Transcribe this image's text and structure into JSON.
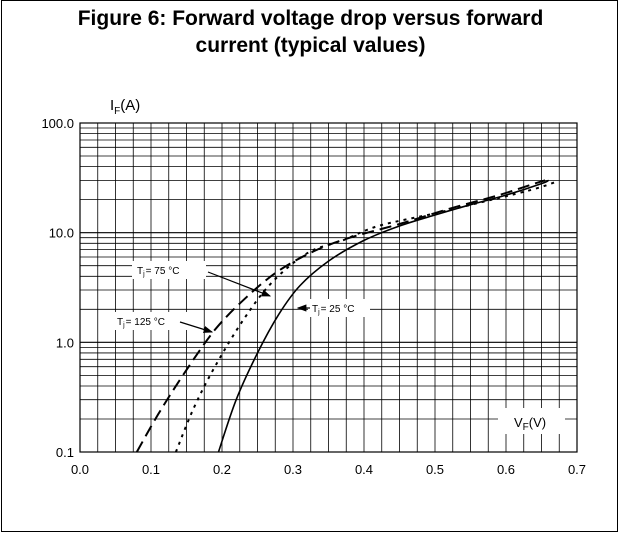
{
  "figure": {
    "title_line1": "Figure 6: Forward voltage drop versus forward",
    "title_line2": "current (typical values)"
  },
  "chart_data": {
    "type": "line",
    "title": "Figure 6: Forward voltage drop versus forward current (typical values)",
    "xlabel": "VF(V)",
    "ylabel": "IF(A)",
    "xlim": [
      0.0,
      0.7
    ],
    "ylim": [
      0.1,
      100.0
    ],
    "yscale": "log",
    "grid": true,
    "x_tick_labels": [
      "0.0",
      "0.1",
      "0.2",
      "0.3",
      "0.4",
      "0.5",
      "0.6",
      "0.7"
    ],
    "y_tick_labels": [
      "100.0",
      "10.0",
      "1.0",
      "0.1"
    ],
    "series": [
      {
        "name": "Tj = 25 °C",
        "style": "solid",
        "points": [
          [
            0.195,
            0.1
          ],
          [
            0.22,
            0.3
          ],
          [
            0.25,
            0.8
          ],
          [
            0.28,
            1.8
          ],
          [
            0.31,
            3.3
          ],
          [
            0.35,
            5.5
          ],
          [
            0.4,
            8.5
          ],
          [
            0.45,
            11.5
          ],
          [
            0.5,
            14.5
          ],
          [
            0.55,
            18.0
          ],
          [
            0.6,
            22.0
          ],
          [
            0.65,
            28.0
          ],
          [
            0.66,
            30.0
          ]
        ]
      },
      {
        "name": "Tj = 75 °C",
        "style": "dotted",
        "points": [
          [
            0.135,
            0.1
          ],
          [
            0.16,
            0.25
          ],
          [
            0.19,
            0.6
          ],
          [
            0.23,
            1.6
          ],
          [
            0.27,
            3.5
          ],
          [
            0.32,
            6.5
          ],
          [
            0.37,
            8.5
          ],
          [
            0.42,
            11.5
          ],
          [
            0.5,
            15.0
          ],
          [
            0.58,
            20.0
          ],
          [
            0.64,
            25.0
          ],
          [
            0.67,
            29.0
          ]
        ]
      },
      {
        "name": "Tj = 125 °C",
        "style": "dashed",
        "points": [
          [
            0.08,
            0.1
          ],
          [
            0.11,
            0.22
          ],
          [
            0.145,
            0.5
          ],
          [
            0.19,
            1.3
          ],
          [
            0.235,
            2.6
          ],
          [
            0.28,
            4.5
          ],
          [
            0.33,
            6.8
          ],
          [
            0.38,
            9.0
          ],
          [
            0.45,
            12.0
          ],
          [
            0.52,
            16.5
          ],
          [
            0.59,
            22.0
          ],
          [
            0.64,
            28.0
          ],
          [
            0.655,
            30.0
          ]
        ]
      }
    ],
    "annotations": [
      {
        "text": "Tj = 75 °C",
        "target_series": "Tj = 75 °C"
      },
      {
        "text": "Tj = 125 °C",
        "target_series": "Tj = 125 °C"
      },
      {
        "text": "Tj = 25 °C",
        "target_series": "Tj = 25 °C"
      }
    ]
  },
  "labels": {
    "y_axis_main": "I",
    "y_axis_sub": "F",
    "y_axis_unit": "(A)",
    "x_axis_main": "V",
    "x_axis_sub": "F",
    "x_axis_unit": "(V)",
    "anno_75_main": "T",
    "anno_75_sub": "j",
    "anno_75_rest": "= 75 °C",
    "anno_125_main": "T",
    "anno_125_sub": "j",
    "anno_125_rest": "= 125 °C",
    "anno_25_main": "T",
    "anno_25_sub": "j",
    "anno_25_rest": "= 25 °C"
  },
  "colors": {
    "line": "#000000",
    "grid": "#000000",
    "background": "#ffffff"
  }
}
